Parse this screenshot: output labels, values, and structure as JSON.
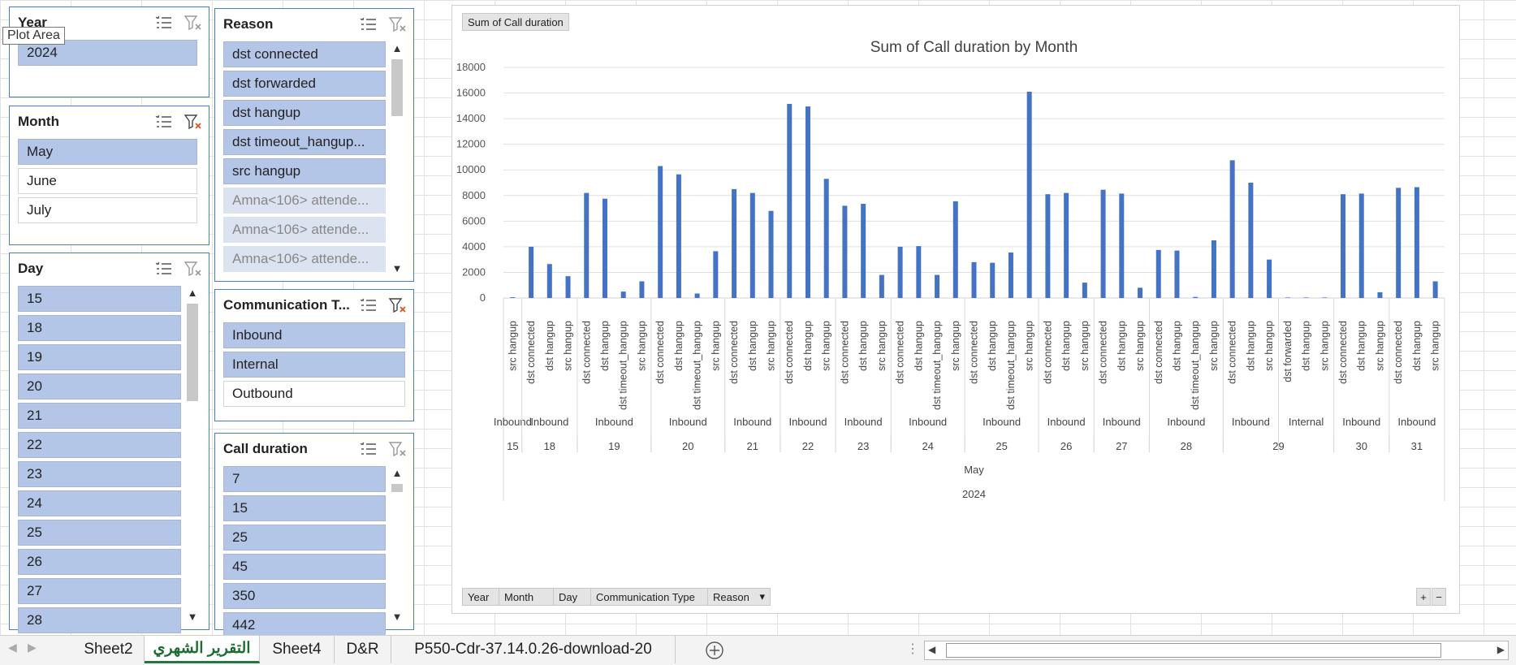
{
  "tooltip": "Plot Area",
  "slicers": {
    "year": {
      "title": "Year",
      "items": [
        {
          "label": "2024",
          "state": "sel"
        }
      ]
    },
    "month": {
      "title": "Month",
      "items": [
        {
          "label": "May",
          "state": "sel"
        },
        {
          "label": "June",
          "state": "unsel"
        },
        {
          "label": "July",
          "state": "unsel"
        }
      ]
    },
    "day": {
      "title": "Day",
      "items": [
        {
          "label": "15",
          "state": "sel"
        },
        {
          "label": "18",
          "state": "sel"
        },
        {
          "label": "19",
          "state": "sel"
        },
        {
          "label": "20",
          "state": "sel"
        },
        {
          "label": "21",
          "state": "sel"
        },
        {
          "label": "22",
          "state": "sel"
        },
        {
          "label": "23",
          "state": "sel"
        },
        {
          "label": "24",
          "state": "sel"
        },
        {
          "label": "25",
          "state": "sel"
        },
        {
          "label": "26",
          "state": "sel"
        },
        {
          "label": "27",
          "state": "sel"
        },
        {
          "label": "28",
          "state": "sel"
        }
      ]
    },
    "reason": {
      "title": "Reason",
      "items": [
        {
          "label": "dst connected",
          "state": "sel"
        },
        {
          "label": "dst forwarded",
          "state": "sel"
        },
        {
          "label": "dst hangup",
          "state": "sel"
        },
        {
          "label": "dst timeout_hangup...",
          "state": "sel"
        },
        {
          "label": "src hangup",
          "state": "sel"
        },
        {
          "label": "Amna<106> attende...",
          "state": "nodata"
        },
        {
          "label": "Amna<106> attende...",
          "state": "nodata"
        },
        {
          "label": "Amna<106> attende...",
          "state": "nodata"
        }
      ]
    },
    "comm": {
      "title": "Communication T...",
      "items": [
        {
          "label": "Inbound",
          "state": "sel"
        },
        {
          "label": "Internal",
          "state": "sel"
        },
        {
          "label": "Outbound",
          "state": "unsel"
        }
      ]
    },
    "duration": {
      "title": "Call duration",
      "items": [
        {
          "label": "7",
          "state": "sel"
        },
        {
          "label": "15",
          "state": "sel"
        },
        {
          "label": "25",
          "state": "sel"
        },
        {
          "label": "45",
          "state": "sel"
        },
        {
          "label": "350",
          "state": "sel"
        },
        {
          "label": "442",
          "state": "sel"
        }
      ]
    }
  },
  "chart_header": "Sum of Call duration",
  "field_buttons": [
    "Year",
    "Month",
    "Day",
    "Communication Type",
    "Reason"
  ],
  "zoom_buttons": [
    "+",
    "−"
  ],
  "tabs": [
    "Sheet2",
    "التقرير الشهري",
    "Sheet4",
    "D&R",
    "P550-Cdr-37.14.0.26-download-20"
  ],
  "active_tab": "التقرير الشهري",
  "colors": {
    "bar": "#4472c4",
    "slicer_selected": "#b4c6e7",
    "slicer_border": "#4a7ebf",
    "active_tab_text": "#1e6b33"
  },
  "chart_data": {
    "type": "bar",
    "title": "Sum of Call duration by Month",
    "ylim": [
      0,
      18000
    ],
    "yticks": [
      0,
      2000,
      4000,
      6000,
      8000,
      10000,
      12000,
      14000,
      16000,
      18000
    ],
    "grid": true,
    "year_label": "2024",
    "month_label": "May",
    "days": [
      {
        "day": "15",
        "groups": [
          {
            "type": "Inbound",
            "bars": [
              {
                "reason": "src hangup",
                "value": 60
              }
            ]
          }
        ]
      },
      {
        "day": "18",
        "groups": [
          {
            "type": "Inbound",
            "bars": [
              {
                "reason": "dst connected",
                "value": 4000
              },
              {
                "reason": "dst hangup",
                "value": 2650
              },
              {
                "reason": "src hangup",
                "value": 1700
              }
            ]
          }
        ]
      },
      {
        "day": "19",
        "groups": [
          {
            "type": "Inbound",
            "bars": [
              {
                "reason": "dst connected",
                "value": 8200
              },
              {
                "reason": "dst hangup",
                "value": 7750
              },
              {
                "reason": "dst timeout_hangup",
                "value": 500
              },
              {
                "reason": "src hangup",
                "value": 1300
              }
            ]
          }
        ]
      },
      {
        "day": "20",
        "groups": [
          {
            "type": "Inbound",
            "bars": [
              {
                "reason": "dst connected",
                "value": 10300
              },
              {
                "reason": "dst hangup",
                "value": 9650
              },
              {
                "reason": "dst timeout_hangup",
                "value": 350
              },
              {
                "reason": "src hangup",
                "value": 3650
              }
            ]
          }
        ]
      },
      {
        "day": "21",
        "groups": [
          {
            "type": "Inbound",
            "bars": [
              {
                "reason": "dst connected",
                "value": 8500
              },
              {
                "reason": "dst hangup",
                "value": 8200
              },
              {
                "reason": "src hangup",
                "value": 6800
              }
            ]
          }
        ]
      },
      {
        "day": "22",
        "groups": [
          {
            "type": "Inbound",
            "bars": [
              {
                "reason": "dst connected",
                "value": 15150
              },
              {
                "reason": "dst hangup",
                "value": 14950
              },
              {
                "reason": "src hangup",
                "value": 9300
              }
            ]
          }
        ]
      },
      {
        "day": "23",
        "groups": [
          {
            "type": "Inbound",
            "bars": [
              {
                "reason": "dst connected",
                "value": 7200
              },
              {
                "reason": "dst hangup",
                "value": 7350
              },
              {
                "reason": "src hangup",
                "value": 1800
              }
            ]
          }
        ]
      },
      {
        "day": "24",
        "groups": [
          {
            "type": "Inbound",
            "bars": [
              {
                "reason": "dst connected",
                "value": 4000
              },
              {
                "reason": "dst hangup",
                "value": 4050
              },
              {
                "reason": "dst timeout_hangup",
                "value": 1800
              },
              {
                "reason": "src hangup",
                "value": 7550
              }
            ]
          }
        ]
      },
      {
        "day": "25",
        "groups": [
          {
            "type": "Inbound",
            "bars": [
              {
                "reason": "dst connected",
                "value": 2800
              },
              {
                "reason": "dst hangup",
                "value": 2750
              },
              {
                "reason": "dst timeout_hangup",
                "value": 3550
              },
              {
                "reason": "src hangup",
                "value": 16100
              }
            ]
          }
        ]
      },
      {
        "day": "26",
        "groups": [
          {
            "type": "Inbound",
            "bars": [
              {
                "reason": "dst connected",
                "value": 8100
              },
              {
                "reason": "dst hangup",
                "value": 8200
              },
              {
                "reason": "src hangup",
                "value": 1200
              }
            ]
          }
        ]
      },
      {
        "day": "27",
        "groups": [
          {
            "type": "Inbound",
            "bars": [
              {
                "reason": "dst connected",
                "value": 8450
              },
              {
                "reason": "dst hangup",
                "value": 8150
              },
              {
                "reason": "src hangup",
                "value": 800
              }
            ]
          }
        ]
      },
      {
        "day": "28",
        "groups": [
          {
            "type": "Inbound",
            "bars": [
              {
                "reason": "dst connected",
                "value": 3750
              },
              {
                "reason": "dst hangup",
                "value": 3700
              },
              {
                "reason": "dst timeout_hangup",
                "value": 80
              },
              {
                "reason": "src hangup",
                "value": 4500
              }
            ]
          }
        ]
      },
      {
        "day": "29",
        "groups": [
          {
            "type": "Inbound",
            "bars": [
              {
                "reason": "dst connected",
                "value": 10750
              },
              {
                "reason": "dst hangup",
                "value": 9000
              },
              {
                "reason": "src hangup",
                "value": 3000
              }
            ]
          },
          {
            "type": "Internal",
            "bars": [
              {
                "reason": "dst forwarded",
                "value": 40
              },
              {
                "reason": "dst hangup",
                "value": 40
              },
              {
                "reason": "src hangup",
                "value": 40
              }
            ]
          }
        ]
      },
      {
        "day": "30",
        "groups": [
          {
            "type": "Inbound",
            "bars": [
              {
                "reason": "dst connected",
                "value": 8100
              },
              {
                "reason": "dst hangup",
                "value": 8150
              },
              {
                "reason": "src hangup",
                "value": 450
              }
            ]
          }
        ]
      },
      {
        "day": "31",
        "groups": [
          {
            "type": "Inbound",
            "bars": [
              {
                "reason": "dst connected",
                "value": 8600
              },
              {
                "reason": "dst hangup",
                "value": 8650
              },
              {
                "reason": "src hangup",
                "value": 1300
              }
            ]
          }
        ]
      }
    ]
  }
}
